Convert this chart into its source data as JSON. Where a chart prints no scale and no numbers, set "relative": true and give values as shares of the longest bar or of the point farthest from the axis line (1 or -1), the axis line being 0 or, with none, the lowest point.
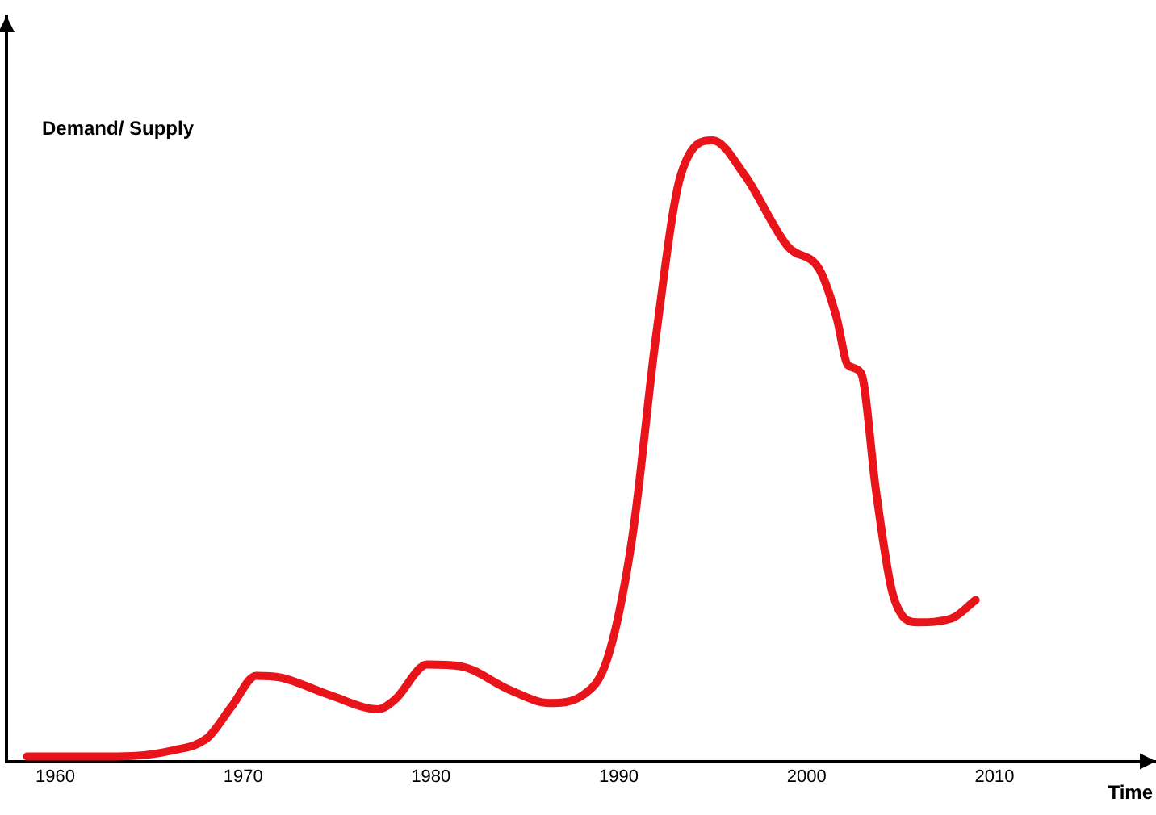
{
  "chart_data": {
    "type": "line",
    "relative": true,
    "xlabel": "Time",
    "ylabel": "Demand/ Supply",
    "xlim": [
      1957.4,
      2018.6
    ],
    "xticks": [
      1960,
      1970,
      1980,
      1990,
      2000,
      2010
    ],
    "grid": false,
    "legend": false,
    "marker": "none",
    "line_style": "solid",
    "series": [
      {
        "color": "#e8141a",
        "x": [
          1958.5,
          1963.3,
          1966.3,
          1968.1,
          1969.4,
          1970.7,
          1972,
          1974.6,
          1977.2,
          1978.1,
          1979.8,
          1981.6,
          1984.2,
          1986.3,
          1988.1,
          1989.4,
          1990.7,
          1992,
          1993.3,
          1995,
          1996.7,
          1999,
          2000.7,
          2001.6,
          2002.2,
          2002.9,
          2003.7,
          2004.6,
          2005.9,
          2007.7,
          2009
        ],
        "values": [
          0.008,
          0.008,
          0.018,
          0.038,
          0.089,
          0.138,
          0.135,
          0.107,
          0.084,
          0.1,
          0.156,
          0.153,
          0.115,
          0.094,
          0.107,
          0.166,
          0.357,
          0.689,
          0.944,
          1,
          0.944,
          0.829,
          0.791,
          0.714,
          0.638,
          0.625,
          0.434,
          0.268,
          0.224,
          0.23,
          0.26
        ]
      }
    ]
  }
}
